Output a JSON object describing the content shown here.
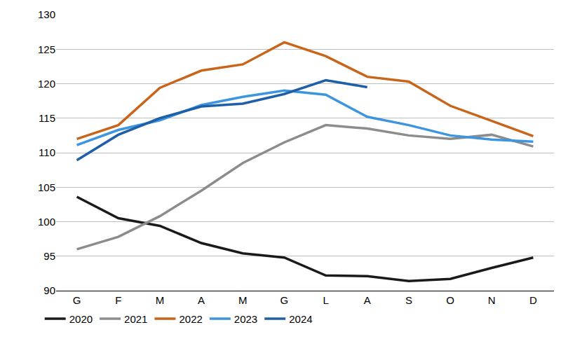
{
  "chart_data": {
    "type": "line",
    "categories": [
      "G",
      "F",
      "M",
      "A",
      "M",
      "G",
      "L",
      "A",
      "S",
      "O",
      "N",
      "D"
    ],
    "series": [
      {
        "name": "2020",
        "color": "#1a1a1a",
        "values": [
          103.6,
          100.5,
          99.4,
          96.9,
          95.4,
          94.8,
          92.2,
          92.1,
          91.4,
          91.7,
          93.3,
          94.8
        ]
      },
      {
        "name": "2021",
        "color": "#8c8c8c",
        "values": [
          96.0,
          97.8,
          100.8,
          104.5,
          108.5,
          111.5,
          114.0,
          113.5,
          112.5,
          112.0,
          112.6,
          110.9
        ]
      },
      {
        "name": "2022",
        "color": "#c8651b",
        "values": [
          112.0,
          114.0,
          119.4,
          121.9,
          122.8,
          126.0,
          124.0,
          121.0,
          120.3,
          116.8,
          114.6,
          112.4
        ]
      },
      {
        "name": "2023",
        "color": "#3d95e0",
        "values": [
          111.1,
          113.3,
          114.7,
          116.9,
          118.1,
          119.0,
          118.4,
          115.2,
          114.0,
          112.5,
          111.9,
          111.6
        ]
      },
      {
        "name": "2024",
        "color": "#1f5fa8",
        "values": [
          108.9,
          112.6,
          115.0,
          116.7,
          117.1,
          118.5,
          120.5,
          119.5,
          null,
          null,
          null,
          null
        ]
      }
    ],
    "ylim": [
      90,
      130
    ],
    "yticks": [
      90,
      95,
      100,
      105,
      110,
      115,
      120,
      125,
      130
    ],
    "grid": true,
    "legend": "bottom"
  }
}
